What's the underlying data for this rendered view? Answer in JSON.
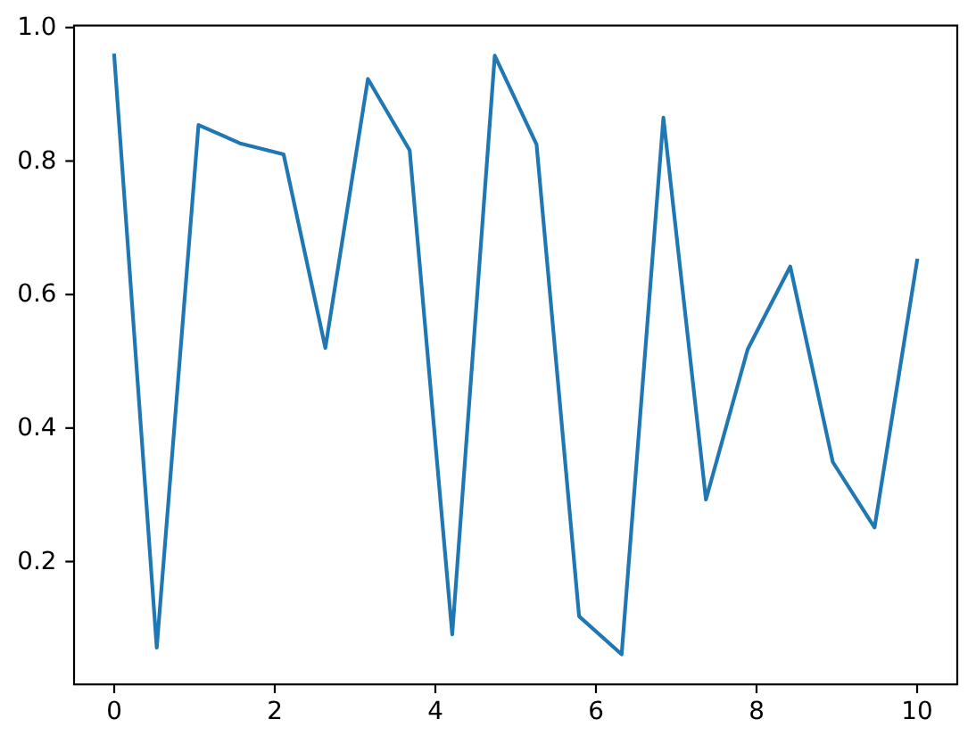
{
  "chart_data": {
    "type": "line",
    "x": [
      0,
      0.53,
      1.05,
      1.58,
      2.11,
      2.63,
      3.16,
      3.68,
      4.21,
      4.74,
      5.26,
      5.79,
      6.32,
      6.84,
      7.37,
      7.89,
      8.42,
      8.95,
      9.47,
      10
    ],
    "values": [
      0.958,
      0.071,
      0.854,
      0.826,
      0.81,
      0.52,
      0.923,
      0.816,
      0.091,
      0.958,
      0.825,
      0.118,
      0.061,
      0.865,
      0.293,
      0.518,
      0.642,
      0.349,
      0.251,
      0.651
    ],
    "color": "#1f77b4",
    "xlim": [
      -0.5,
      10.5
    ],
    "ylim": [
      0.016,
      1.003
    ],
    "xticks": [
      0,
      2,
      4,
      6,
      8,
      10
    ],
    "yticks": [
      0.2,
      0.4,
      0.6,
      0.8,
      {
        "value": 1,
        "label": "1.0"
      }
    ]
  }
}
